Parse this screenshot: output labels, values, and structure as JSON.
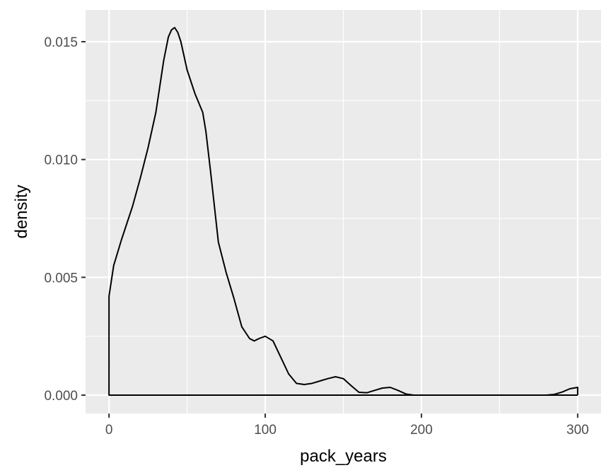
{
  "chart_data": {
    "type": "area",
    "title": "",
    "xlabel": "pack_years",
    "ylabel": "density",
    "xlim": [
      -15,
      315
    ],
    "ylim": [
      -0.00078,
      0.01635
    ],
    "x_ticks": [
      0,
      100,
      200,
      300
    ],
    "x_tick_labels": [
      "0",
      "100",
      "200",
      "300"
    ],
    "y_ticks": [
      0.0,
      0.005,
      0.01,
      0.015
    ],
    "y_tick_labels": [
      "0.000",
      "0.005",
      "0.010",
      "0.015"
    ],
    "grid": true,
    "panel_color": "#ebebeb",
    "grid_color": "#ffffff",
    "line_color": "#000000",
    "fill": "none",
    "series": [
      {
        "x": [
          0,
          3,
          8,
          15,
          20,
          25,
          30,
          35,
          38,
          40,
          42,
          44,
          46,
          50,
          55,
          60,
          62,
          65,
          70,
          75,
          80,
          85,
          90,
          93,
          96,
          100,
          105,
          110,
          115,
          120,
          125,
          130,
          135,
          140,
          145,
          150,
          155,
          160,
          165,
          170,
          175,
          180,
          185,
          190,
          195,
          200,
          250,
          280,
          285,
          290,
          295,
          300
        ],
        "y": [
          0.0042,
          0.0055,
          0.0066,
          0.008,
          0.0092,
          0.0105,
          0.012,
          0.0142,
          0.0152,
          0.0155,
          0.0156,
          0.0154,
          0.015,
          0.0138,
          0.0128,
          0.012,
          0.0112,
          0.0095,
          0.0065,
          0.0052,
          0.0041,
          0.0029,
          0.0024,
          0.0023,
          0.0024,
          0.0025,
          0.0023,
          0.0016,
          0.0009,
          0.0005,
          0.00045,
          0.0005,
          0.0006,
          0.0007,
          0.00078,
          0.0007,
          0.0004,
          0.00012,
          0.0001,
          0.0002,
          0.0003,
          0.00033,
          0.0002,
          5e-05,
          0.0,
          0.0,
          0.0,
          0.0,
          3e-05,
          0.00013,
          0.00027,
          0.00033
        ]
      }
    ]
  }
}
